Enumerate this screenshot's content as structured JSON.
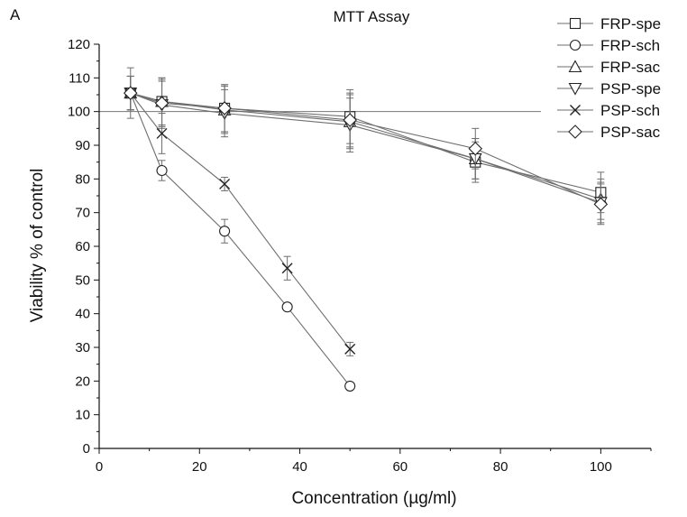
{
  "panel_label": "A",
  "chart_data": {
    "type": "line",
    "title": "MTT Assay",
    "xlabel": "Concentration (µg/ml)",
    "ylabel": "Viability % of control",
    "xlim": [
      0,
      110
    ],
    "ylim": [
      0,
      120
    ],
    "xticks": [
      0,
      20,
      40,
      60,
      80,
      100
    ],
    "yticks": [
      0,
      10,
      20,
      30,
      40,
      50,
      60,
      70,
      80,
      90,
      100,
      110,
      120
    ],
    "reference_line": 100,
    "legend_position": "top-right",
    "line_color": "#6e6e6e",
    "series": [
      {
        "name": "FRP-spe",
        "marker": "square",
        "x": [
          6.25,
          12.5,
          25,
          50,
          75,
          100
        ],
        "y": [
          105.5,
          103,
          101,
          98.5,
          85,
          76
        ],
        "err": [
          5,
          7,
          7,
          8,
          6,
          6
        ]
      },
      {
        "name": "FRP-sch",
        "marker": "circle",
        "x": [
          6.25,
          12.5,
          25,
          37.5,
          50
        ],
        "y": [
          105.5,
          82.5,
          64.5,
          42,
          18.5
        ],
        "err": [
          5,
          3,
          3.5,
          1,
          1
        ]
      },
      {
        "name": "FRP-sac",
        "marker": "triangle-up",
        "x": [
          6.25,
          12.5,
          25,
          50,
          75,
          100
        ],
        "y": [
          105.5,
          103,
          100.5,
          97,
          86,
          74
        ],
        "err": [
          5,
          7,
          7,
          8,
          6,
          6
        ]
      },
      {
        "name": "PSP-spe",
        "marker": "triangle-down",
        "x": [
          6.25,
          12.5,
          25,
          50,
          75,
          100
        ],
        "y": [
          105.5,
          102,
          99.5,
          96,
          86,
          73
        ],
        "err": [
          5,
          7,
          7,
          8,
          6,
          6
        ]
      },
      {
        "name": "PSP-sch",
        "marker": "x",
        "x": [
          6.25,
          12.5,
          25,
          37.5,
          50
        ],
        "y": [
          105.5,
          93.5,
          78.5,
          53.5,
          29.5
        ],
        "err": [
          7.5,
          6,
          2,
          3.5,
          2
        ]
      },
      {
        "name": "PSP-sac",
        "marker": "diamond",
        "x": [
          6.25,
          12.5,
          25,
          50,
          75,
          100
        ],
        "y": [
          105.5,
          102.5,
          101,
          97.5,
          89,
          72.5
        ],
        "err": [
          5,
          7,
          7,
          8,
          6,
          6
        ]
      }
    ]
  }
}
